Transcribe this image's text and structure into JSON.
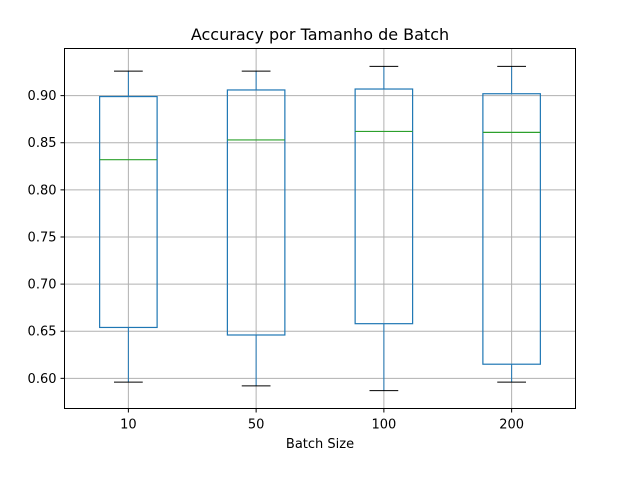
{
  "chart_data": {
    "type": "box",
    "title": "Accuracy por Tamanho de Batch",
    "xlabel": "Batch Size",
    "ylabel": "",
    "categories": [
      "10",
      "50",
      "100",
      "200"
    ],
    "boxes": [
      {
        "category": "10",
        "whisker_low": 0.596,
        "q1": 0.654,
        "median": 0.832,
        "q3": 0.899,
        "whisker_high": 0.926
      },
      {
        "category": "50",
        "whisker_low": 0.592,
        "q1": 0.646,
        "median": 0.853,
        "q3": 0.906,
        "whisker_high": 0.926
      },
      {
        "category": "100",
        "whisker_low": 0.587,
        "q1": 0.658,
        "median": 0.862,
        "q3": 0.907,
        "whisker_high": 0.931
      },
      {
        "category": "200",
        "whisker_low": 0.596,
        "q1": 0.615,
        "median": 0.861,
        "q3": 0.902,
        "whisker_high": 0.931
      }
    ],
    "yticks": [
      "0.60",
      "0.65",
      "0.70",
      "0.75",
      "0.80",
      "0.85",
      "0.90"
    ],
    "ylim": [
      0.568,
      0.95
    ],
    "grid": true,
    "colors": {
      "box": "#1f77b4",
      "median": "#2ca02c",
      "whisker_cap": "#000000",
      "grid": "#b0b0b0"
    }
  }
}
